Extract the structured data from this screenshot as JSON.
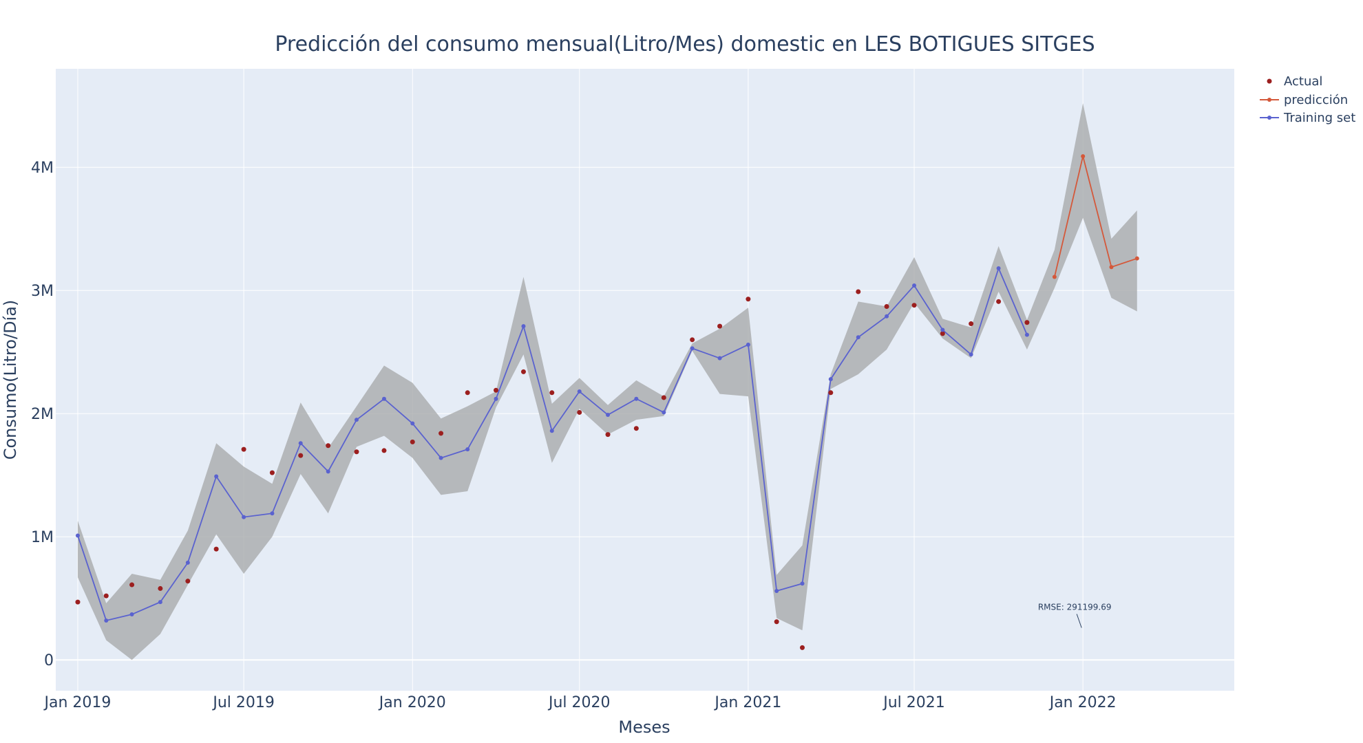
{
  "chart_data": {
    "type": "line",
    "title": "Predicción del consumo mensual(Litro/Mes) domestic en LES BOTIGUES SITGES",
    "xlabel": "Meses",
    "ylabel": "Consumo(Litro/Día)",
    "x_ticks": [
      "Jan 2019",
      "Jul 2019",
      "Jan 2020",
      "Jul 2020",
      "Jan 2021",
      "Jul 2021",
      "Jan 2022"
    ],
    "y_ticks": [
      "0",
      "1M",
      "2M",
      "3M",
      "4M"
    ],
    "ylim": [
      -250000,
      4800000
    ],
    "xlim": [
      "2018-12-08",
      "2022-06-15"
    ],
    "grid": true,
    "legend_position": "top-right",
    "colors": {
      "actual": "#9c1f1f",
      "training": "#5a62cf",
      "prediction": "#d4583a",
      "band": "#a9abad",
      "plot_bg": "#e5ecf6",
      "grid": "#ffffff"
    },
    "series": [
      {
        "name": "Actual",
        "mode": "markers",
        "x": [
          "2019-01-01",
          "2019-02-01",
          "2019-03-01",
          "2019-04-01",
          "2019-05-01",
          "2019-06-01",
          "2019-07-01",
          "2019-08-01",
          "2019-09-01",
          "2019-10-01",
          "2019-11-01",
          "2019-12-01",
          "2020-01-01",
          "2020-02-01",
          "2020-03-01",
          "2020-04-01",
          "2020-05-01",
          "2020-06-01",
          "2020-07-01",
          "2020-08-01",
          "2020-09-01",
          "2020-10-01",
          "2020-11-01",
          "2020-12-01",
          "2021-01-01",
          "2021-02-01",
          "2021-03-01",
          "2021-04-01",
          "2021-05-01",
          "2021-06-01",
          "2021-07-01",
          "2021-08-01",
          "2021-09-01",
          "2021-10-01",
          "2021-11-01"
        ],
        "values": [
          470000,
          520000,
          610000,
          580000,
          640000,
          900000,
          1710000,
          1520000,
          1660000,
          1740000,
          1690000,
          1700000,
          1770000,
          1840000,
          2170000,
          2190000,
          2340000,
          2170000,
          2010000,
          1830000,
          1880000,
          2130000,
          2600000,
          2710000,
          2930000,
          310000,
          100000,
          2170000,
          2990000,
          2870000,
          2880000,
          2650000,
          2730000,
          2910000,
          2740000
        ]
      },
      {
        "name": "predicción",
        "mode": "lines+markers",
        "x": [
          "2021-12-01",
          "2022-01-01",
          "2022-02-01",
          "2022-03-01"
        ],
        "values": [
          3110000,
          4090000,
          3190000,
          3260000
        ]
      },
      {
        "name": "Training set",
        "mode": "lines+markers",
        "x": [
          "2019-01-01",
          "2019-02-01",
          "2019-03-01",
          "2019-04-01",
          "2019-05-01",
          "2019-06-01",
          "2019-07-01",
          "2019-08-01",
          "2019-09-01",
          "2019-10-01",
          "2019-11-01",
          "2019-12-01",
          "2020-01-01",
          "2020-02-01",
          "2020-03-01",
          "2020-04-01",
          "2020-05-01",
          "2020-06-01",
          "2020-07-01",
          "2020-08-01",
          "2020-09-01",
          "2020-10-01",
          "2020-11-01",
          "2020-12-01",
          "2021-01-01",
          "2021-02-01",
          "2021-03-01",
          "2021-04-01",
          "2021-05-01",
          "2021-06-01",
          "2021-07-01",
          "2021-08-01",
          "2021-09-01",
          "2021-10-01",
          "2021-11-01"
        ],
        "values": [
          1010000,
          320000,
          370000,
          470000,
          790000,
          1490000,
          1160000,
          1190000,
          1760000,
          1530000,
          1950000,
          2120000,
          1920000,
          1640000,
          1710000,
          2120000,
          2710000,
          1860000,
          2180000,
          1990000,
          2120000,
          2010000,
          2530000,
          2450000,
          2560000,
          560000,
          620000,
          2280000,
          2620000,
          2790000,
          3040000,
          2680000,
          2480000,
          3180000,
          2640000
        ]
      }
    ],
    "band": {
      "x": [
        "2019-01-01",
        "2019-02-01",
        "2019-03-01",
        "2019-04-01",
        "2019-05-01",
        "2019-06-01",
        "2019-07-01",
        "2019-08-01",
        "2019-09-01",
        "2019-10-01",
        "2019-11-01",
        "2019-12-01",
        "2020-01-01",
        "2020-02-01",
        "2020-03-01",
        "2020-04-01",
        "2020-05-01",
        "2020-06-01",
        "2020-07-01",
        "2020-08-01",
        "2020-09-01",
        "2020-10-01",
        "2020-11-01",
        "2020-12-01",
        "2021-01-01",
        "2021-02-01",
        "2021-03-01",
        "2021-04-01",
        "2021-05-01",
        "2021-06-01",
        "2021-07-01",
        "2021-08-01",
        "2021-09-01",
        "2021-10-01",
        "2021-11-01",
        "2021-12-01",
        "2022-01-01",
        "2022-02-01",
        "2022-03-01"
      ],
      "upper": [
        1130000,
        460000,
        700000,
        650000,
        1050000,
        1760000,
        1570000,
        1430000,
        2090000,
        1720000,
        2060000,
        2390000,
        2250000,
        1960000,
        2060000,
        2180000,
        3110000,
        2080000,
        2290000,
        2070000,
        2270000,
        2140000,
        2570000,
        2690000,
        2860000,
        690000,
        930000,
        2320000,
        2910000,
        2870000,
        3270000,
        2770000,
        2700000,
        3360000,
        2760000,
        3330000,
        4520000,
        3420000,
        3650000
      ],
      "lower": [
        670000,
        160000,
        0,
        210000,
        610000,
        1020000,
        700000,
        1000000,
        1510000,
        1190000,
        1730000,
        1820000,
        1640000,
        1340000,
        1370000,
        2050000,
        2480000,
        1600000,
        2040000,
        1830000,
        1950000,
        1980000,
        2510000,
        2160000,
        2140000,
        340000,
        240000,
        2200000,
        2320000,
        2520000,
        2900000,
        2610000,
        2450000,
        2990000,
        2520000,
        3020000,
        3590000,
        2940000,
        2830000
      ]
    },
    "annotation": {
      "text": "RMSE: 291199.69",
      "x": "2022-01-01",
      "y": 250000
    }
  }
}
